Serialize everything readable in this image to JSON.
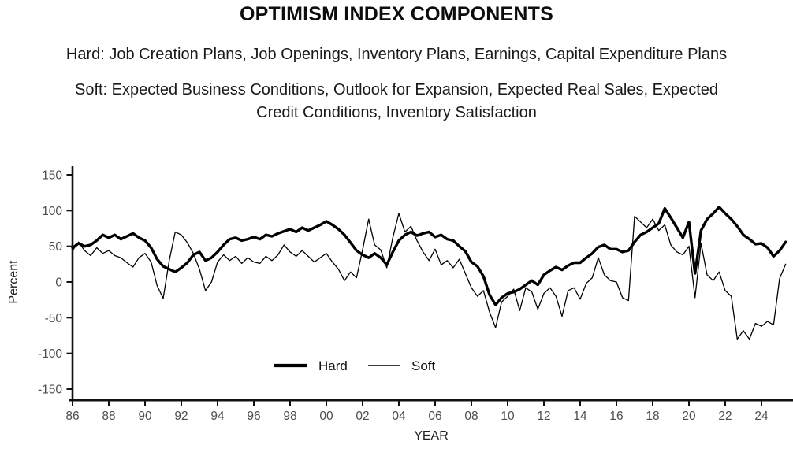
{
  "title": "OPTIMISM INDEX COMPONENTS",
  "subtitle_hard": "Hard: Job Creation Plans, Job Openings, Inventory Plans, Earnings, Capital Expenditure Plans",
  "subtitle_soft_line1": "Soft: Expected Business Conditions, Outlook for Expansion, Expected Real Sales, Expected",
  "subtitle_soft_line2": "Credit Conditions, Inventory Satisfaction",
  "chart_data": {
    "type": "line",
    "title": "OPTIMISM INDEX COMPONENTS",
    "xlabel": "YEAR",
    "ylabel": "Percent",
    "x_tick_labels": [
      "86",
      "88",
      "90",
      "92",
      "94",
      "96",
      "98",
      "00",
      "02",
      "04",
      "06",
      "08",
      "10",
      "12",
      "14",
      "16",
      "18",
      "20",
      "22",
      "24"
    ],
    "x_tick_years": [
      1986,
      1988,
      1990,
      1992,
      1994,
      1996,
      1998,
      2000,
      2002,
      2004,
      2006,
      2008,
      2010,
      2012,
      2014,
      2016,
      2018,
      2020,
      2022,
      2024
    ],
    "y_ticks": [
      150,
      100,
      50,
      0,
      -50,
      -100,
      -150
    ],
    "ylim": [
      -165,
      165
    ],
    "x_range_years": [
      1986,
      2025.6
    ],
    "grid": false,
    "legend_position": "bottom-center-inside",
    "line_color": "#000000",
    "x_start_year": 1986.0,
    "x_step_years": 0.33333,
    "series": [
      {
        "name": "Hard",
        "style": "thick",
        "values": [
          48,
          54,
          50,
          52,
          58,
          66,
          62,
          66,
          60,
          64,
          68,
          62,
          58,
          48,
          32,
          22,
          18,
          14,
          20,
          27,
          38,
          42,
          30,
          34,
          42,
          52,
          60,
          62,
          58,
          60,
          63,
          60,
          66,
          64,
          68,
          71,
          74,
          70,
          76,
          72,
          76,
          80,
          85,
          80,
          74,
          66,
          55,
          44,
          38,
          34,
          40,
          34,
          24,
          42,
          58,
          66,
          70,
          65,
          68,
          70,
          63,
          66,
          60,
          58,
          50,
          43,
          28,
          22,
          8,
          -18,
          -32,
          -22,
          -16,
          -14,
          -10,
          -4,
          2,
          -4,
          10,
          16,
          21,
          17,
          23,
          27,
          27,
          34,
          40,
          49,
          52,
          46,
          46,
          42,
          44,
          56,
          66,
          70,
          76,
          82,
          103,
          90,
          76,
          62,
          84,
          12,
          72,
          88,
          96,
          105,
          96,
          88,
          78,
          66,
          60,
          53,
          54,
          48,
          36,
          44,
          56
        ]
      },
      {
        "name": "Soft",
        "style": "thin",
        "values": [
          44,
          56,
          44,
          37,
          48,
          40,
          44,
          37,
          34,
          27,
          21,
          34,
          40,
          28,
          -5,
          -23,
          30,
          70,
          66,
          55,
          40,
          18,
          -12,
          0,
          28,
          38,
          30,
          36,
          26,
          34,
          28,
          26,
          36,
          30,
          38,
          52,
          42,
          36,
          44,
          36,
          28,
          34,
          40,
          28,
          18,
          2,
          14,
          6,
          45,
          88,
          52,
          45,
          20,
          62,
          96,
          70,
          78,
          58,
          42,
          30,
          46,
          24,
          30,
          20,
          32,
          12,
          -8,
          -20,
          -12,
          -42,
          -64,
          -28,
          -20,
          -10,
          -40,
          -8,
          -14,
          -38,
          -16,
          -8,
          -20,
          -48,
          -12,
          -8,
          -24,
          -2,
          6,
          34,
          10,
          2,
          0,
          -22,
          -26,
          92,
          84,
          76,
          88,
          72,
          80,
          52,
          42,
          38,
          50,
          -22,
          54,
          10,
          2,
          14,
          -12,
          -20,
          -80,
          -68,
          -80,
          -58,
          -62,
          -55,
          -60,
          5,
          25
        ]
      }
    ]
  }
}
